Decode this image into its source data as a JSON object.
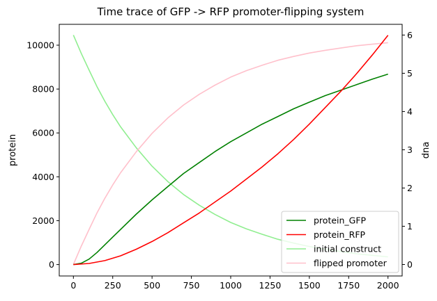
{
  "chart_data": {
    "type": "line",
    "title": "Time trace of GFP -> RFP promoter-flipping system",
    "xlabel": "",
    "ylabel": "protein",
    "y2label": "dna",
    "y2label_color": "#228B22",
    "xlim": [
      -90,
      2090
    ],
    "ylim": [
      -520,
      10950
    ],
    "y2lim": [
      -0.3,
      6.28
    ],
    "xticks": [
      0,
      250,
      500,
      750,
      1000,
      1250,
      1500,
      1750,
      2000
    ],
    "yticks": [
      0,
      2000,
      4000,
      6000,
      8000,
      10000
    ],
    "y2ticks": [
      0,
      1,
      2,
      3,
      4,
      5,
      6
    ],
    "legend_position": "lower right",
    "grid": false,
    "series": [
      {
        "name": "protein_GFP",
        "axis": "left",
        "color": "#008000",
        "x": [
          0,
          50,
          100,
          150,
          200,
          250,
          300,
          400,
          500,
          600,
          700,
          800,
          900,
          1000,
          1100,
          1200,
          1300,
          1400,
          1500,
          1600,
          1700,
          1800,
          1900,
          2000
        ],
        "y": [
          0,
          60,
          250,
          550,
          900,
          1250,
          1600,
          2300,
          2950,
          3550,
          4150,
          4650,
          5150,
          5600,
          6000,
          6400,
          6750,
          7100,
          7400,
          7700,
          7950,
          8200,
          8450,
          8680
        ]
      },
      {
        "name": "protein_RFP",
        "axis": "left",
        "color": "#ff0000",
        "x": [
          0,
          100,
          200,
          300,
          400,
          500,
          600,
          700,
          800,
          900,
          1000,
          1100,
          1200,
          1300,
          1400,
          1500,
          1600,
          1700,
          1800,
          1900,
          2000
        ],
        "y": [
          0,
          50,
          180,
          400,
          700,
          1050,
          1450,
          1900,
          2350,
          2850,
          3350,
          3900,
          4450,
          5050,
          5700,
          6400,
          7150,
          7900,
          8700,
          9550,
          10450
        ]
      },
      {
        "name": "initial construct",
        "axis": "right",
        "color": "#90ee90",
        "x": [
          0,
          50,
          100,
          150,
          200,
          250,
          300,
          400,
          500,
          600,
          700,
          800,
          900,
          1000,
          1100,
          1200,
          1300,
          1400,
          1500,
          1600,
          1700,
          1800,
          1900,
          2000
        ],
        "y": [
          6.0,
          5.52,
          5.08,
          4.65,
          4.27,
          3.92,
          3.6,
          3.05,
          2.57,
          2.17,
          1.83,
          1.55,
          1.31,
          1.1,
          0.93,
          0.79,
          0.66,
          0.56,
          0.47,
          0.4,
          0.34,
          0.28,
          0.24,
          0.2
        ]
      },
      {
        "name": "flipped promoter",
        "axis": "right",
        "color": "#ffc0cb",
        "x": [
          0,
          50,
          100,
          150,
          200,
          250,
          300,
          400,
          500,
          600,
          700,
          800,
          900,
          1000,
          1100,
          1200,
          1300,
          1400,
          1500,
          1600,
          1700,
          1800,
          1900,
          2000
        ],
        "y": [
          0,
          0.48,
          0.92,
          1.35,
          1.73,
          2.08,
          2.4,
          2.95,
          3.43,
          3.83,
          4.17,
          4.45,
          4.69,
          4.9,
          5.07,
          5.21,
          5.34,
          5.44,
          5.53,
          5.6,
          5.66,
          5.72,
          5.76,
          5.8
        ]
      }
    ]
  }
}
